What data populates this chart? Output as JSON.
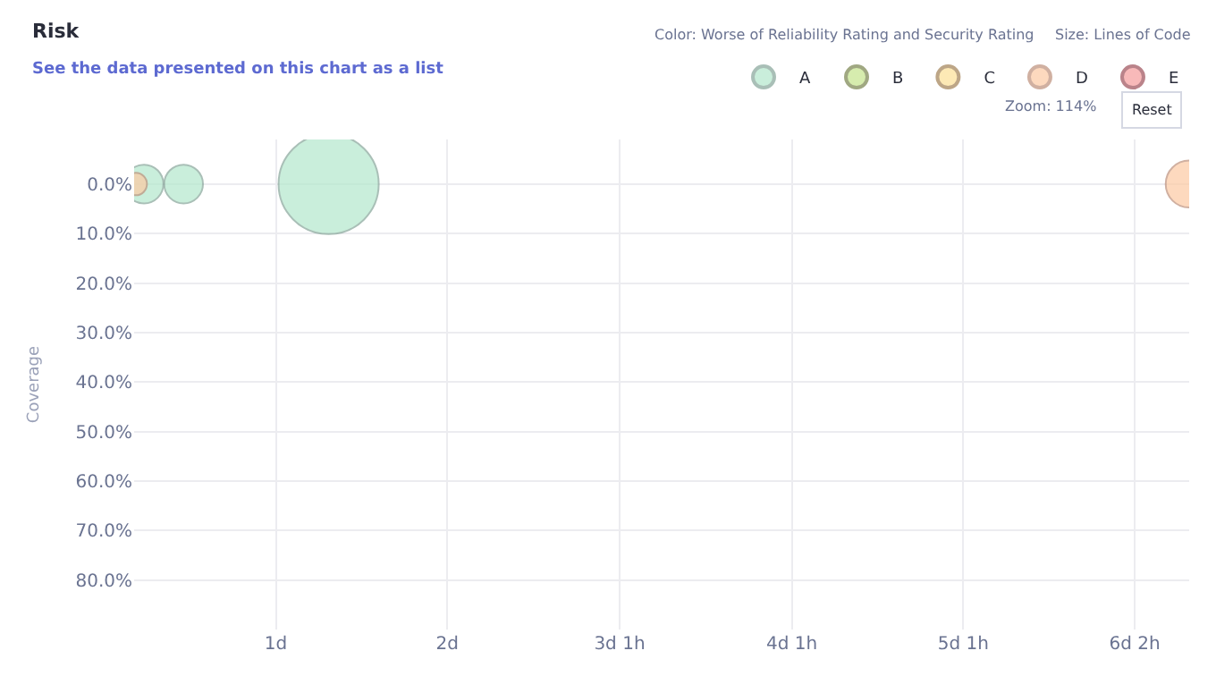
{
  "chart_data": {
    "type": "bubble",
    "title": "Risk",
    "subtitle": "See the data presented on this chart as a list",
    "ylabel": "Coverage",
    "annotations": [
      "Color: Worse of Reliability Rating and Security Rating",
      "Size: Lines of Code",
      "Zoom: 114%",
      "Reset"
    ],
    "series": [
      {
        "name": "A",
        "color": "#b3e8cc",
        "x": [
          0.24,
          0.48,
          1.36
        ],
        "values": [
          0,
          0,
          0
        ],
        "sizes": [
          0.15,
          0.15,
          1
        ]
      },
      {
        "name": "B",
        "color": "#d6ecae"
      },
      {
        "name": "C",
        "color": "#fde9b5"
      },
      {
        "name": "D",
        "color": "#fdcaa3",
        "x": [
          0.19,
          6.58
        ],
        "values": [
          0,
          0
        ],
        "sizes": [
          0.05,
          0.22
        ]
      },
      {
        "name": "E",
        "color": "#f8b9b9"
      }
    ],
    "xlim": [
      0.18,
      6.58
    ],
    "xticks": [
      {
        "value": 1.04,
        "label": "1d"
      },
      {
        "value": 2.08,
        "label": "2d"
      },
      {
        "value": 3.125,
        "label": "3d 1h"
      },
      {
        "value": 4.17,
        "label": "4d 1h"
      },
      {
        "value": 5.21,
        "label": "5d 1h"
      },
      {
        "value": 6.25,
        "label": "6d 2h"
      }
    ],
    "ylim": [
      90,
      -9
    ],
    "yticks": [
      {
        "value": 0,
        "label": "0.0%"
      },
      {
        "value": 10,
        "label": "10.0%"
      },
      {
        "value": 20,
        "label": "20.0%"
      },
      {
        "value": 30,
        "label": "30.0%"
      },
      {
        "value": 40,
        "label": "40.0%"
      },
      {
        "value": 50,
        "label": "50.0%"
      },
      {
        "value": 60,
        "label": "60.0%"
      },
      {
        "value": 70,
        "label": "70.0%"
      },
      {
        "value": 80,
        "label": "80.0%"
      }
    ],
    "grid": true,
    "legend": "top right"
  }
}
